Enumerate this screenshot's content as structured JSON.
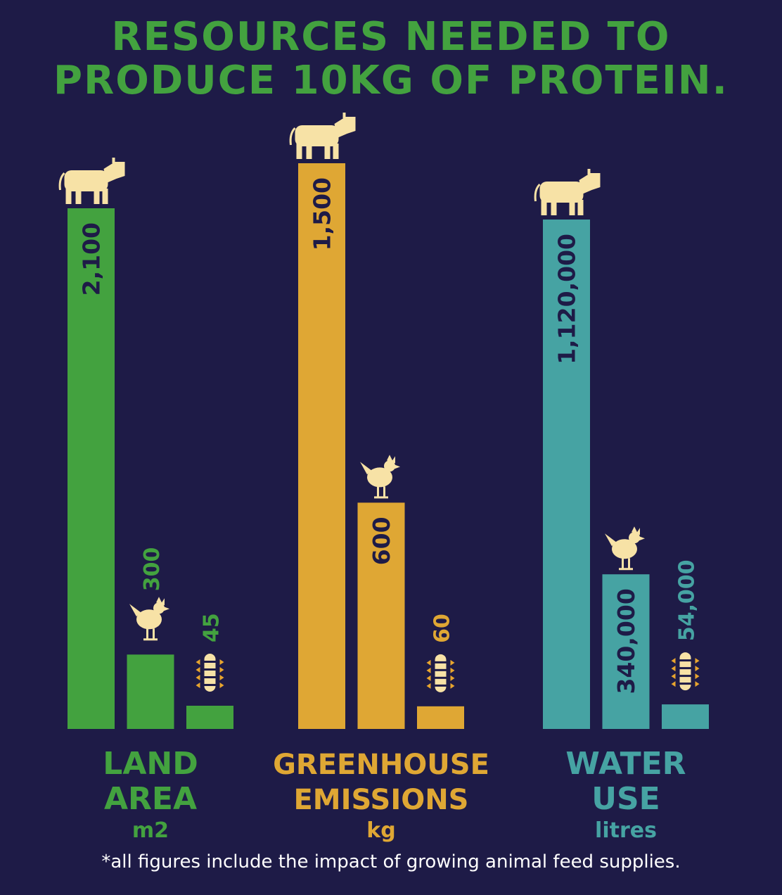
{
  "title_lines": [
    "RESOURCES NEEDED TO",
    "PRODUCE 10KG OF PROTEIN."
  ],
  "footnote": "*all figures include the impact of growing animal feed supplies.",
  "colors": {
    "background": "#1e1b47",
    "title": "#43a23f",
    "icon": "#f7e2a6",
    "text_dark": "#1e1b47",
    "footnote": "#ffffff"
  },
  "chart_data": [
    {
      "type": "bar",
      "label_lines": [
        "LAND",
        "AREA"
      ],
      "unit": "m2",
      "color": "#43a23f",
      "categories": [
        "beef",
        "chicken",
        "insects"
      ],
      "icons": [
        "cow-icon",
        "chicken-icon",
        "insect-icon"
      ],
      "values": [
        2100,
        300,
        45
      ],
      "value_labels": [
        "2,100",
        "300",
        "45"
      ],
      "max": 2100
    },
    {
      "type": "bar",
      "label_lines": [
        "GREENHOUSE",
        "EMISSIONS"
      ],
      "unit": "kg",
      "color": "#dfa734",
      "categories": [
        "beef",
        "chicken",
        "insects"
      ],
      "icons": [
        "cow-icon",
        "chicken-icon",
        "insect-icon"
      ],
      "values": [
        1500,
        600,
        60
      ],
      "value_labels": [
        "1,500",
        "600",
        "60"
      ],
      "max": 1500
    },
    {
      "type": "bar",
      "label_lines": [
        "WATER",
        "USE"
      ],
      "unit": "litres",
      "color": "#46a3a3",
      "categories": [
        "beef",
        "chicken",
        "insects"
      ],
      "icons": [
        "cow-icon",
        "chicken-icon",
        "insect-icon"
      ],
      "values": [
        1120000,
        340000,
        54000
      ],
      "value_labels": [
        "1,120,000",
        "340,000",
        "54,000"
      ],
      "max": 1120000
    }
  ]
}
